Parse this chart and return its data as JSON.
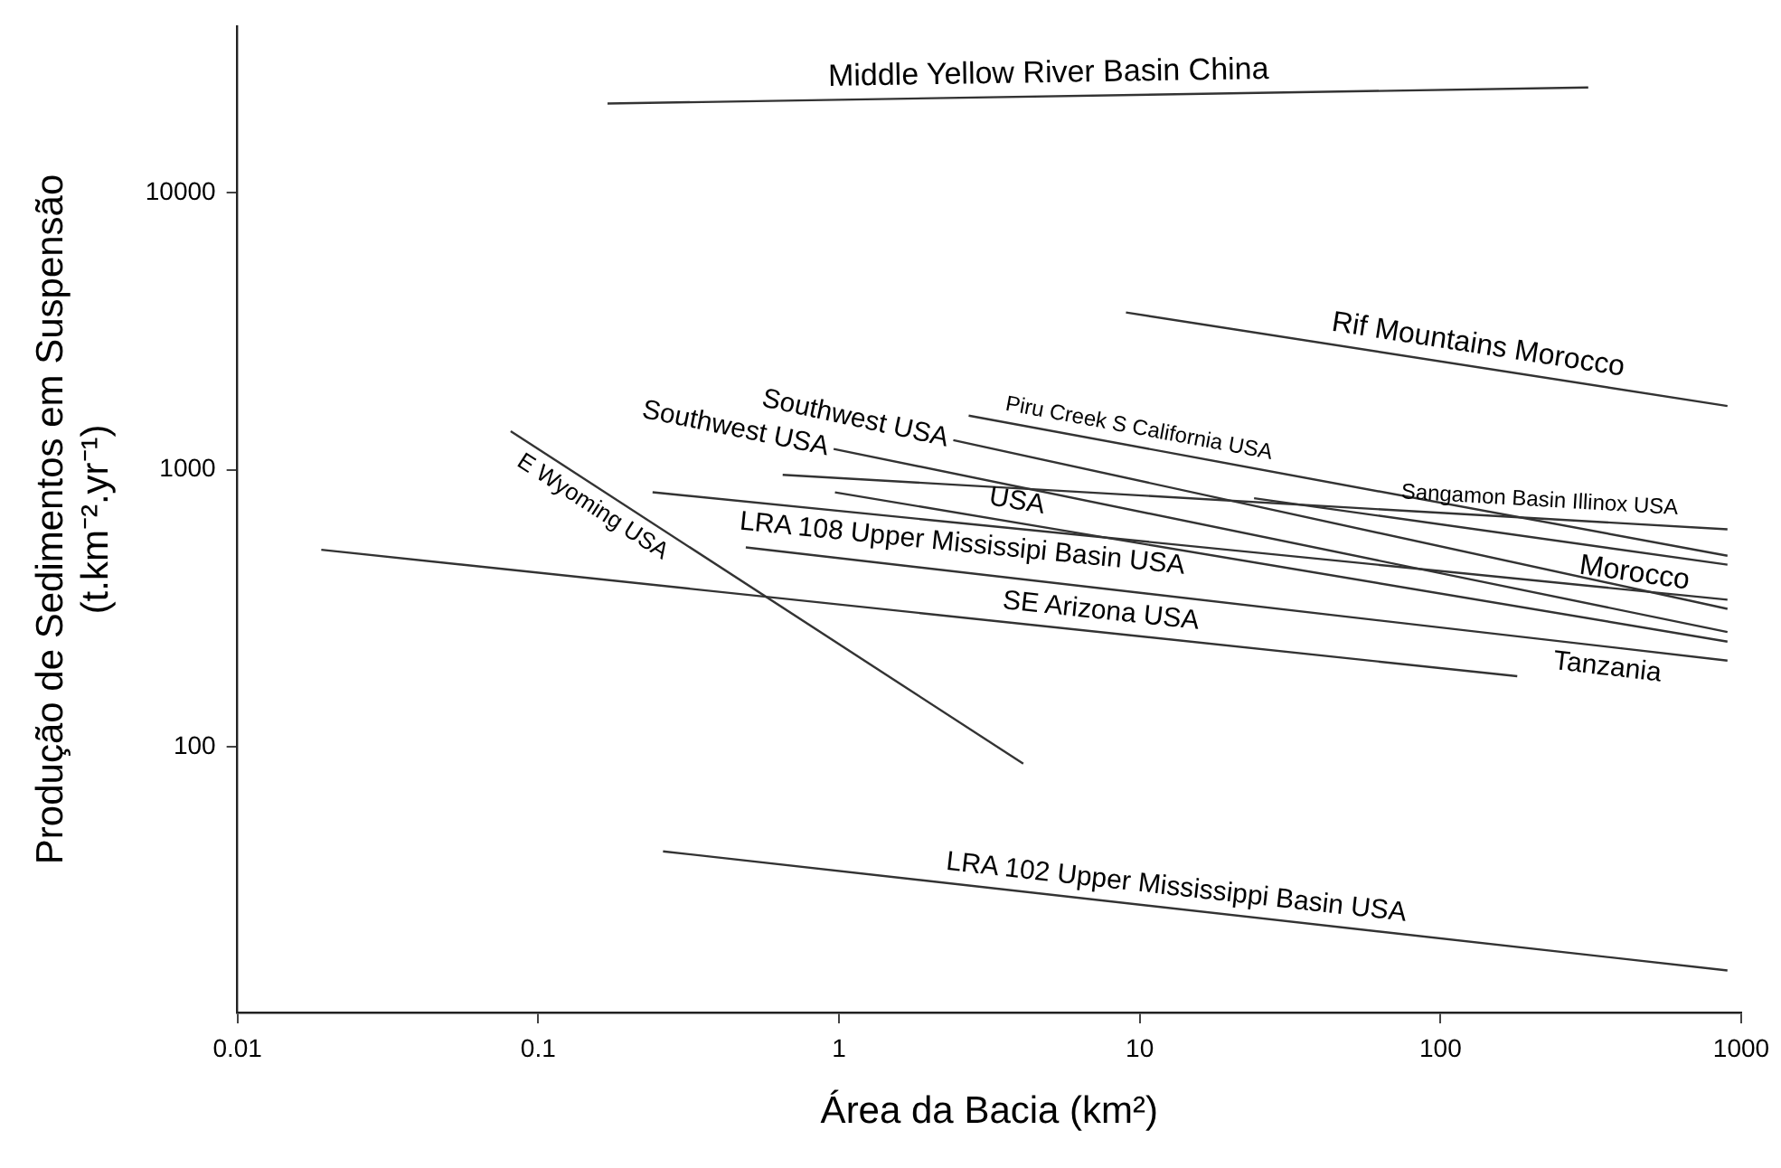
{
  "chart_data": {
    "type": "line",
    "xlabel": "Área da Bacia (km²)",
    "ylabel": [
      "Produção de Sedimentos em Suspensão",
      "(t.km⁻².yr⁻¹)"
    ],
    "log": "xy",
    "grid": false,
    "legend": false,
    "marker": "none",
    "line_style": "solid",
    "xlim": [
      0.01,
      1000
    ],
    "xticks": [
      0.01,
      0.1,
      1,
      10,
      100,
      1000
    ],
    "ylim": [
      11,
      40000
    ],
    "yticks": [
      100,
      1000,
      10000
    ],
    "series": [
      {
        "name": "Middle Yellow River Basin China",
        "color": "#333333",
        "x": [
          0.17,
          310
        ],
        "values": [
          21000,
          24000
        ]
      },
      {
        "name": "Rif Mountains Morocco",
        "color": "#333333",
        "x": [
          9,
          900
        ],
        "values": [
          3700,
          1700
        ]
      },
      {
        "name": "Piru Creek S California USA",
        "color": "#333333",
        "x": [
          2.7,
          900
        ],
        "values": [
          1570,
          490
        ]
      },
      {
        "name": "Morocco",
        "color": "#333333",
        "x": [
          24,
          900
        ],
        "values": [
          790,
          455
        ]
      },
      {
        "name": "Southwest USA",
        "color": "#333333",
        "x": [
          2.4,
          900
        ],
        "values": [
          1280,
          315
        ]
      },
      {
        "name": "Southwest USA",
        "color": "#333333",
        "x": [
          0.96,
          900
        ],
        "values": [
          1190,
          260
        ]
      },
      {
        "name": "Sangamon Basin Illinox USA",
        "color": "#333333",
        "x": [
          0.65,
          900
        ],
        "values": [
          960,
          610
        ]
      },
      {
        "name": "USA",
        "color": "#333333",
        "x": [
          0.97,
          900
        ],
        "values": [
          830,
          240
        ]
      },
      {
        "name": "LRA 108 Upper Mississipi Basin USA",
        "color": "#333333",
        "x": [
          0.24,
          900
        ],
        "values": [
          830,
          340
        ]
      },
      {
        "name": "Tanzania",
        "color": "#333333",
        "x": [
          0.49,
          900
        ],
        "values": [
          525,
          205
        ]
      },
      {
        "name": "SE Arizona USA",
        "color": "#333333",
        "x": [
          0.019,
          180
        ],
        "values": [
          515,
          180
        ]
      },
      {
        "name": "E Wyoming USA",
        "color": "#333333",
        "x": [
          0.081,
          4.1
        ],
        "values": [
          1380,
          87
        ]
      },
      {
        "name": "LRA 102 Upper Mississippi Basin USA",
        "color": "#333333",
        "x": [
          0.26,
          900
        ],
        "values": [
          42,
          15.6
        ]
      }
    ]
  }
}
